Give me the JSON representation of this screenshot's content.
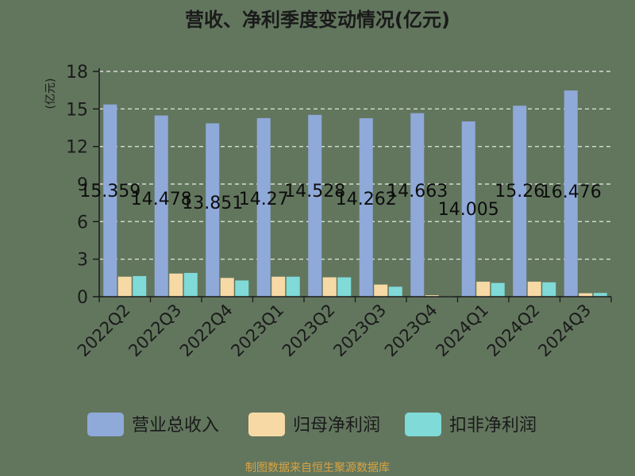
{
  "chart_data": {
    "type": "bar",
    "title": "营收、净利季度变动情况(亿元)",
    "ylabel": "(亿元)",
    "ylim": [
      0,
      18
    ],
    "yticks": [
      0,
      3,
      6,
      9,
      12,
      15,
      18
    ],
    "grid": true,
    "legend_position": "bottom",
    "categories": [
      "2022Q2",
      "2022Q3",
      "2022Q4",
      "2023Q1",
      "2023Q2",
      "2023Q3",
      "2023Q4",
      "2024Q1",
      "2024Q2",
      "2024Q3"
    ],
    "series": [
      {
        "name": "营业总收入",
        "color": "#8fa9d9",
        "values": [
          15.359,
          14.478,
          13.851,
          14.27,
          14.528,
          14.262,
          14.663,
          14.005,
          15.26,
          16.476
        ]
      },
      {
        "name": "归母净利润",
        "color": "#f7d9a6",
        "values": [
          1.6,
          1.85,
          1.5,
          1.6,
          1.55,
          0.97,
          0.12,
          1.2,
          1.2,
          0.28
        ]
      },
      {
        "name": "扣非净利润",
        "color": "#7fdad8",
        "values": [
          1.65,
          1.9,
          1.3,
          1.6,
          1.55,
          0.8,
          0.05,
          1.1,
          1.15,
          0.3
        ]
      }
    ],
    "data_labels": [
      "15.359",
      "14.478",
      "13.851",
      "14.27",
      "14.528",
      "14.262",
      "14.663",
      "14.005",
      "15.26",
      "16.476"
    ],
    "source": "制图数据来自恒生聚源数据库"
  }
}
